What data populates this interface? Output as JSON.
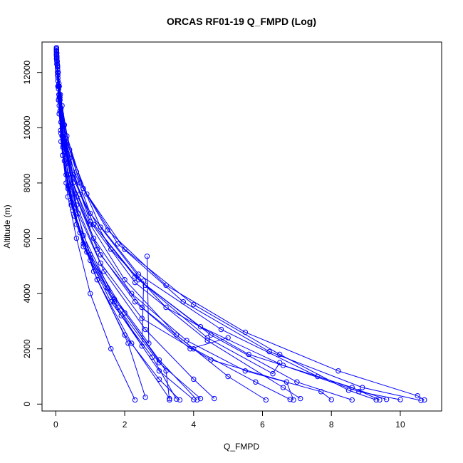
{
  "chart_data": {
    "type": "line",
    "title": "ORCAS RF01-19 Q_FMPD (Log)",
    "xlabel": "Q_FMPD",
    "ylabel": "Altitude (m)",
    "xlim": [
      -0.4,
      11.2
    ],
    "ylim": [
      -250,
      13100
    ],
    "x_ticks": [
      0,
      2,
      4,
      6,
      8,
      10
    ],
    "y_ticks": [
      0,
      2000,
      4000,
      6000,
      8000,
      10000,
      12000
    ],
    "grid": false,
    "series_color": "#0000ff",
    "marker": "open-circle",
    "series": [
      {
        "x": [
          0.02,
          0.05,
          0.1,
          0.2,
          0.35,
          0.6,
          1.0,
          1.6,
          2.3
        ],
        "y": [
          12800,
          12000,
          10500,
          9000,
          7500,
          6000,
          4000,
          2000,
          150
        ]
      },
      {
        "x": [
          0.02,
          0.06,
          0.15,
          0.3,
          0.6,
          1.2,
          2.0,
          3.0,
          3.6
        ],
        "y": [
          12600,
          11500,
          9500,
          8000,
          6500,
          4500,
          2500,
          900,
          150
        ]
      },
      {
        "x": [
          0.03,
          0.08,
          0.2,
          0.45,
          0.9,
          1.8,
          3.0,
          4.2
        ],
        "y": [
          12400,
          11000,
          9000,
          7200,
          5500,
          3500,
          1500,
          200
        ]
      },
      {
        "x": [
          0.02,
          0.05,
          0.12,
          0.25,
          0.5,
          1.0,
          2.0,
          3.5,
          5.0,
          6.1
        ],
        "y": [
          12900,
          12200,
          11000,
          9500,
          8000,
          6500,
          4500,
          2500,
          1000,
          150
        ]
      },
      {
        "x": [
          0.02,
          0.04,
          0.1,
          0.22,
          0.5,
          1.1,
          2.4,
          4.5,
          7.0,
          8.6
        ],
        "y": [
          12850,
          12300,
          11200,
          9800,
          8200,
          6500,
          4500,
          2500,
          800,
          150
        ]
      },
      {
        "x": [
          0.03,
          0.07,
          0.18,
          0.4,
          0.9,
          2.0,
          4.0,
          6.5,
          8.5,
          9.3
        ],
        "y": [
          12700,
          12000,
          10800,
          9200,
          7600,
          5600,
          3600,
          1800,
          500,
          150
        ]
      },
      {
        "x": [
          0.02,
          0.05,
          0.12,
          0.3,
          0.7,
          1.5,
          3.2,
          5.5,
          8.2,
          10.5,
          10.7
        ],
        "y": [
          12800,
          12200,
          11000,
          9600,
          8000,
          6300,
          4300,
          2600,
          1200,
          300,
          150
        ]
      },
      {
        "x": [
          0.04,
          0.1,
          0.25,
          0.55,
          1.2,
          2.2,
          3.3
        ],
        "y": [
          12300,
          10800,
          8800,
          6800,
          4500,
          2200,
          200
        ]
      },
      {
        "x": [
          0.02,
          0.08,
          0.2,
          0.5,
          1.1,
          2.1,
          2.6
        ],
        "y": [
          12500,
          11000,
          9000,
          7000,
          4800,
          2200,
          250
        ]
      },
      {
        "x": [
          0.05,
          0.12,
          0.3,
          0.65,
          1.4,
          2.6,
          4.0,
          4.6
        ],
        "y": [
          12100,
          10600,
          8700,
          6900,
          4800,
          2700,
          900,
          200
        ]
      },
      {
        "x": [
          0.02,
          0.06,
          0.16,
          0.4,
          1.0,
          2.3,
          4.4,
          6.6,
          7.1
        ],
        "y": [
          12700,
          11900,
          10500,
          8700,
          6600,
          4400,
          2300,
          600,
          200
        ]
      },
      {
        "x": [
          0.02,
          0.05,
          0.15,
          0.4,
          1.0,
          2.4,
          4.8,
          7.6,
          9.6
        ],
        "y": [
          12750,
          12100,
          10700,
          8900,
          6900,
          4700,
          2700,
          1000,
          170
        ]
      },
      {
        "x": [
          0.03,
          0.09,
          0.22,
          0.5,
          1.1,
          2.3,
          4.2,
          6.6,
          8.8,
          10.0
        ],
        "y": [
          12600,
          11600,
          10100,
          8300,
          6500,
          4600,
          2800,
          1400,
          450,
          160
        ]
      },
      {
        "x": [
          0.06,
          0.15,
          0.35,
          0.8,
          1.6,
          2.8,
          3.5
        ],
        "y": [
          11800,
          9800,
          7900,
          5700,
          3700,
          1700,
          180
        ]
      },
      {
        "x": [
          0.02,
          0.04,
          0.1,
          0.25,
          0.6,
          1.3,
          2.6,
          4.4,
          6.3,
          6.5
        ],
        "y": [
          12850,
          12400,
          11500,
          10100,
          8400,
          6400,
          4300,
          2400,
          1100,
          1500
        ]
      },
      {
        "x": [
          0.03,
          0.08,
          0.2,
          0.55,
          1.2,
          2.3,
          3.9,
          5.0
        ],
        "y": [
          12500,
          11400,
          9700,
          7600,
          5600,
          3700,
          2000,
          2400
        ]
      },
      {
        "x": [
          0.02,
          0.06,
          0.15,
          0.35,
          0.8,
          1.7,
          3.0,
          4.1
        ],
        "y": [
          12650,
          11700,
          10200,
          8300,
          6100,
          3800,
          1600,
          150
        ]
      },
      {
        "x": [
          0.04,
          0.1,
          0.25,
          0.6,
          1.3,
          2.5,
          4.0,
          5.8,
          6.8
        ],
        "y": [
          12400,
          11100,
          9400,
          7500,
          5400,
          3500,
          2000,
          800,
          170
        ]
      },
      {
        "x": [
          0.02,
          0.05,
          0.13,
          0.32,
          0.8,
          1.8,
          3.7,
          6.2,
          8.9,
          10.6
        ],
        "y": [
          12800,
          12250,
          11200,
          9700,
          7800,
          5800,
          3700,
          1900,
          600,
          130
        ]
      },
      {
        "x": [
          0.03,
          0.1,
          0.3,
          0.7,
          1.5,
          2.7,
          2.65
        ],
        "y": [
          12300,
          10500,
          8300,
          6200,
          4200,
          2200,
          5350
        ]
      },
      {
        "x": [
          0.05,
          0.14,
          0.35,
          0.8,
          1.7,
          2.5,
          2.55
        ],
        "y": [
          11900,
          9900,
          7800,
          5800,
          3700,
          2100,
          4450
        ]
      },
      {
        "x": [
          0.02,
          0.07,
          0.18,
          0.45,
          1.0,
          2.0,
          3.2,
          3.3
        ],
        "y": [
          12650,
          11500,
          9700,
          7600,
          5400,
          3300,
          1200,
          150
        ]
      },
      {
        "x": [
          0.03,
          0.08,
          0.2,
          0.5,
          1.1,
          2.2,
          3.8,
          5.5,
          7.7,
          8.0
        ],
        "y": [
          12550,
          11500,
          9900,
          8000,
          6000,
          4000,
          2300,
          1200,
          450,
          160
        ]
      },
      {
        "x": [
          0.02,
          0.05,
          0.12,
          0.3,
          0.7,
          1.6,
          3.2,
          5.6,
          8.6,
          9.4
        ],
        "y": [
          12800,
          12200,
          11100,
          9500,
          7600,
          5600,
          3500,
          1800,
          600,
          150
        ]
      },
      {
        "x": [
          0.08,
          0.2,
          0.45,
          1.0,
          1.9,
          3.0,
          4.0
        ],
        "y": [
          11500,
          9300,
          7300,
          5200,
          3200,
          1200,
          160
        ]
      },
      {
        "x": [
          0.03,
          0.09,
          0.25,
          0.6,
          1.3,
          2.5,
          4.5,
          6.7,
          6.9
        ],
        "y": [
          12450,
          11200,
          9300,
          7200,
          5100,
          3100,
          1600,
          800,
          150
        ]
      }
    ]
  }
}
